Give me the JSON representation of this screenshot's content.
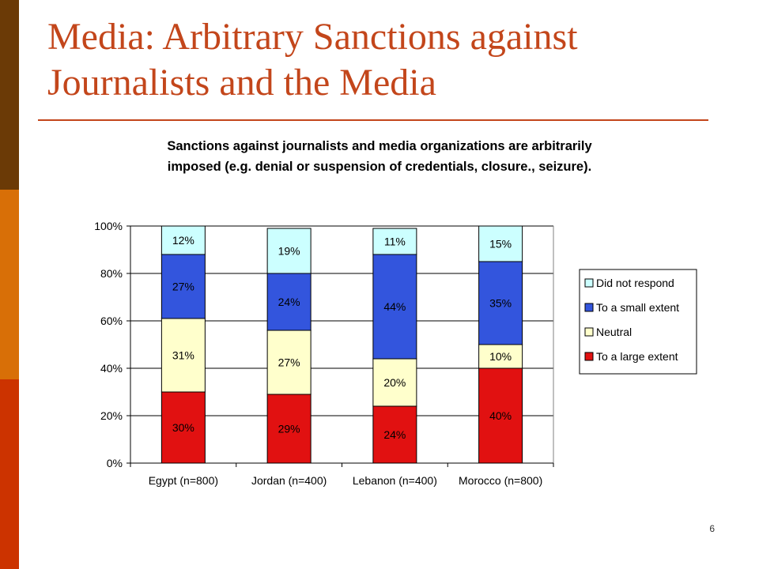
{
  "slide": {
    "title_line1": "Media: Arbitrary Sanctions against",
    "title_line2": "Journalists and the Media",
    "page_number": "6",
    "colors": {
      "title": "#c3461b",
      "sidebar_top": "#6b3a06",
      "sidebar_mid": "#d86f07",
      "sidebar_bottom": "#cc3300",
      "rule": "#c3461b"
    }
  },
  "chart_data": {
    "type": "bar",
    "stacked": true,
    "title_line1": "Sanctions against journalists and media organizations are arbitrarily",
    "title_line2": "imposed (e.g. denial or suspension of credentials, closure., seizure).",
    "categories": [
      "Egypt (n=800)",
      "Jordan (n=400)",
      "Lebanon (n=400)",
      "Morocco (n=800)"
    ],
    "series": [
      {
        "name": "To a large extent",
        "color": "#e11111",
        "values": [
          30,
          29,
          24,
          40
        ]
      },
      {
        "name": "Neutral",
        "color": "#ffffcc",
        "values": [
          31,
          27,
          20,
          10
        ]
      },
      {
        "name": "To a small extent",
        "color": "#3355dd",
        "values": [
          27,
          24,
          44,
          35
        ]
      },
      {
        "name": "Did not respond",
        "color": "#ccffff",
        "values": [
          12,
          19,
          11,
          15
        ]
      }
    ],
    "legend_order": [
      "Did not respond",
      "To a small extent",
      "Neutral",
      "To a large extent"
    ],
    "value_suffix": "%",
    "ylim": [
      0,
      100
    ],
    "yticks": [
      "0%",
      "20%",
      "40%",
      "60%",
      "80%",
      "100%"
    ],
    "ytick_values": [
      0,
      20,
      40,
      60,
      80,
      100
    ],
    "grid": true,
    "legend_position": "right"
  }
}
